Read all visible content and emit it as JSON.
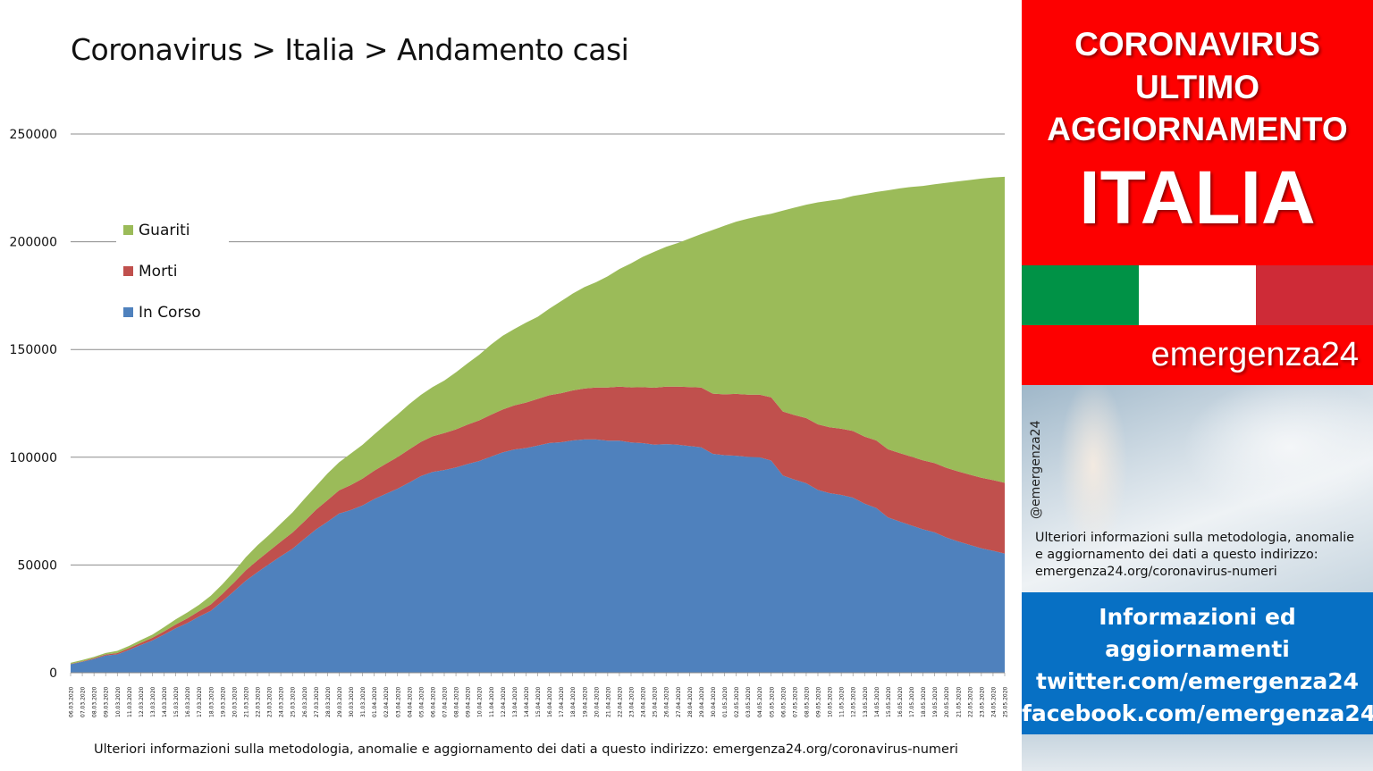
{
  "title": "Coronavirus > Italia > Andamento casi",
  "footnote": "Ulteriori informazioni sulla metodologia, anomalie e aggiornamento dei dati a questo indirizzo: emergenza24.org/coronavirus-numeri",
  "side_panel": {
    "banner_lines": [
      "CORONAVIRUS",
      "ULTIMO",
      "AGGIORNAMENTO"
    ],
    "banner_big": "ITALIA",
    "flag_colors": [
      "#009246",
      "#ffffff",
      "#ce2b37"
    ],
    "brand": "emergenza24",
    "handle": "@emergenza24",
    "note_lines": [
      "Ulteriori informazioni sulla metodologia, anomalie",
      "e aggiornamento dei dati a questo indirizzo:",
      "emergenza24.org/coronavirus-numeri"
    ],
    "social_lines": [
      "Informazioni ed",
      "aggiornamenti",
      "twitter.com/emergenza24",
      "facebook.com/emergenza24"
    ]
  },
  "chart_data": {
    "type": "area",
    "stacked": true,
    "title": "",
    "xlabel": "",
    "ylabel": "",
    "ylim": [
      0,
      250000
    ],
    "yticks": [
      0,
      50000,
      100000,
      150000,
      200000,
      250000
    ],
    "grid": true,
    "legend_position": "top-left",
    "categories": [
      "06.03.2020",
      "07.03.2020",
      "08.03.2020",
      "09.03.2020",
      "10.03.2020",
      "11.03.2020",
      "12.03.2020",
      "13.03.2020",
      "14.03.2020",
      "15.03.2020",
      "16.03.2020",
      "17.03.2020",
      "18.03.2020",
      "19.03.2020",
      "20.03.2020",
      "21.03.2020",
      "22.03.2020",
      "23.03.2020",
      "24.03.2020",
      "25.03.2020",
      "26.03.2020",
      "27.03.2020",
      "28.03.2020",
      "29.03.2020",
      "30.03.2020",
      "31.03.2020",
      "01.04.2020",
      "02.04.2020",
      "03.04.2020",
      "04.04.2020",
      "05.04.2020",
      "06.04.2020",
      "07.04.2020",
      "08.04.2020",
      "09.04.2020",
      "10.04.2020",
      "11.04.2020",
      "12.04.2020",
      "13.04.2020",
      "14.04.2020",
      "15.04.2020",
      "16.04.2020",
      "17.04.2020",
      "18.04.2020",
      "19.04.2020",
      "20.04.2020",
      "21.04.2020",
      "22.04.2020",
      "23.04.2020",
      "24.04.2020",
      "25.04.2020",
      "26.04.2020",
      "27.04.2020",
      "28.04.2020",
      "29.04.2020",
      "30.04.2020",
      "01.05.2020",
      "02.05.2020",
      "03.05.2020",
      "04.05.2020",
      "05.05.2020",
      "06.05.2020",
      "07.05.2020",
      "08.05.2020",
      "09.05.2020",
      "10.05.2020",
      "11.05.2020",
      "12.05.2020",
      "13.05.2020",
      "14.05.2020",
      "15.05.2020",
      "16.05.2020",
      "17.05.2020",
      "18.05.2020",
      "19.05.2020",
      "20.05.2020",
      "21.05.2020",
      "22.05.2020",
      "23.05.2020",
      "24.05.2020",
      "25.05.2020"
    ],
    "series": [
      {
        "name": "In Corso",
        "color": "#4f81bd",
        "values": [
          3916,
          5061,
          6387,
          7985,
          8514,
          10590,
          12839,
          14955,
          17750,
          20603,
          23073,
          26062,
          28710,
          33190,
          37860,
          42681,
          46638,
          50418,
          54030,
          57521,
          62013,
          66414,
          70065,
          73880,
          75528,
          77635,
          80572,
          83049,
          85388,
          88274,
          91246,
          93187,
          94067,
          95262,
          96877,
          98273,
          100269,
          102253,
          103616,
          104291,
          105418,
          106607,
          106962,
          107771,
          108257,
          108237,
          107709,
          107699,
          106848,
          106527,
          105847,
          106103,
          105813,
          105205,
          104657,
          101551,
          100943,
          100704,
          100179,
          99980,
          98467,
          91528,
          89624,
          87961,
          84842,
          83324,
          82488,
          81266,
          78457,
          76440,
          72070,
          70187,
          68351,
          66553,
          65129,
          62752,
          60960,
          59322,
          57752,
          56594,
          55300
        ]
      },
      {
        "name": "Morti",
        "color": "#c0504d",
        "values": [
          197,
          233,
          366,
          463,
          631,
          827,
          1016,
          1266,
          1441,
          1809,
          2158,
          2503,
          2978,
          3405,
          4032,
          4825,
          5476,
          6077,
          6820,
          7503,
          8165,
          9134,
          10023,
          10779,
          11591,
          12428,
          13155,
          13915,
          14681,
          15362,
          15887,
          16523,
          17127,
          17669,
          18279,
          18849,
          19468,
          19899,
          20465,
          21067,
          21645,
          22170,
          22745,
          23227,
          23660,
          24114,
          24648,
          25085,
          25549,
          25969,
          26384,
          26644,
          26977,
          27359,
          27682,
          27967,
          28236,
          28710,
          28884,
          29079,
          29315,
          29684,
          29958,
          30201,
          30395,
          30560,
          30739,
          30911,
          31106,
          31368,
          31610,
          31763,
          31908,
          32007,
          32169,
          32330,
          32486,
          32616,
          32735,
          32785,
          32877
        ]
      },
      {
        "name": "Guariti",
        "color": "#9bbb59",
        "values": [
          523,
          589,
          622,
          724,
          1004,
          1045,
          1258,
          1439,
          1966,
          2335,
          2749,
          2941,
          4025,
          4440,
          5129,
          6072,
          7024,
          7432,
          8326,
          9362,
          10361,
          10950,
          12384,
          13030,
          14620,
          15729,
          16847,
          18278,
          19758,
          20996,
          21815,
          22837,
          24392,
          26491,
          28470,
          30455,
          32534,
          34211,
          35435,
          37130,
          38092,
          40164,
          42727,
          44927,
          47055,
          48877,
          51600,
          54543,
          57576,
          60498,
          63120,
          64928,
          66624,
          68941,
          71252,
          75945,
          78249,
          79914,
          81654,
          82879,
          85231,
          93245,
          96276,
          99023,
          103031,
          105186,
          106587,
          109039,
          112541,
          115288,
          120205,
          122810,
          125176,
          127326,
          129401,
          132282,
          134560,
          136720,
          138840,
          140479,
          141981
        ]
      }
    ]
  }
}
